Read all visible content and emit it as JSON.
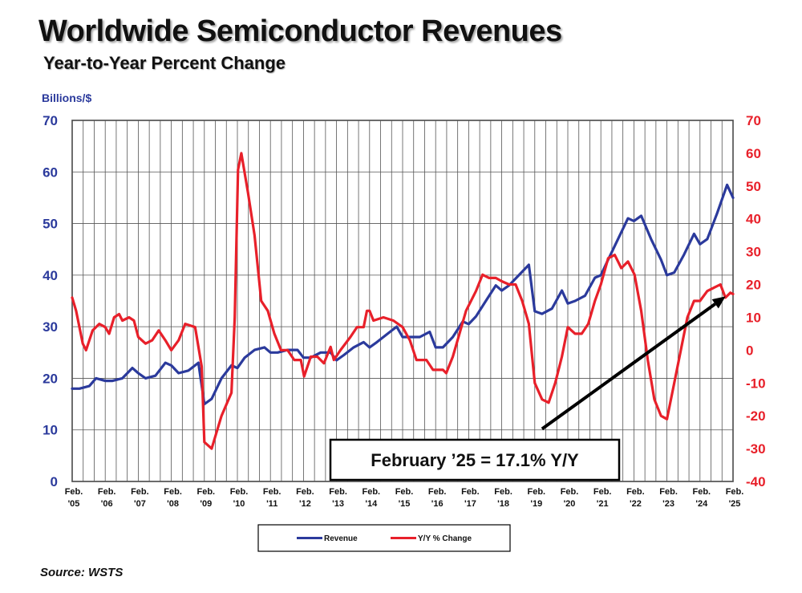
{
  "header": {
    "title": "Worldwide Semiconductor Revenues",
    "subtitle": "Year-to-Year Percent Change",
    "unit_label": "Billions/$"
  },
  "footer": {
    "source": "Source: WSTS"
  },
  "callout": {
    "text": "February ’25 = 17.1% Y/Y"
  },
  "colors": {
    "revenue": "#2b3a9c",
    "yoy": "#e8202a",
    "grid": "#555555",
    "arrow": "#000000"
  },
  "chart_data": {
    "type": "line",
    "title": "Worldwide Semiconductor Revenues",
    "subtitle": "Year-to-Year Percent Change",
    "ylabel": "Billions/$",
    "left_axis": {
      "range": [
        0,
        70
      ],
      "ticks": [
        0,
        10,
        20,
        30,
        40,
        50,
        60,
        70
      ]
    },
    "right_axis": {
      "range": [
        -40,
        70
      ],
      "ticks": [
        -40,
        -30,
        -20,
        -10,
        0,
        10,
        20,
        30,
        40,
        50,
        60,
        70
      ]
    },
    "x_range": [
      2005.08,
      2025.08
    ],
    "x_ticks": [
      {
        "pos": 2005.08,
        "l1": "Feb.",
        "l2": "'05"
      },
      {
        "pos": 2006.08,
        "l1": "Feb.",
        "l2": "'06"
      },
      {
        "pos": 2007.08,
        "l1": "Feb.",
        "l2": "'07"
      },
      {
        "pos": 2008.08,
        "l1": "Feb.",
        "l2": "'08"
      },
      {
        "pos": 2009.08,
        "l1": "Feb.",
        "l2": "'09"
      },
      {
        "pos": 2010.08,
        "l1": "Feb.",
        "l2": "'10"
      },
      {
        "pos": 2011.08,
        "l1": "Feb.",
        "l2": "'11"
      },
      {
        "pos": 2012.08,
        "l1": "Feb.",
        "l2": "'12"
      },
      {
        "pos": 2013.08,
        "l1": "Feb.",
        "l2": "'13"
      },
      {
        "pos": 2014.08,
        "l1": "Feb.",
        "l2": "'14"
      },
      {
        "pos": 2015.08,
        "l1": "Feb.",
        "l2": "'15"
      },
      {
        "pos": 2016.08,
        "l1": "Feb.",
        "l2": "'16"
      },
      {
        "pos": 2017.08,
        "l1": "Feb.",
        "l2": "'17"
      },
      {
        "pos": 2018.08,
        "l1": "Feb.",
        "l2": "'18"
      },
      {
        "pos": 2019.08,
        "l1": "Feb.",
        "l2": "'19"
      },
      {
        "pos": 2020.08,
        "l1": "Feb.",
        "l2": "'20"
      },
      {
        "pos": 2021.08,
        "l1": "Feb.",
        "l2": "'21"
      },
      {
        "pos": 2022.08,
        "l1": "Feb.",
        "l2": "'22"
      },
      {
        "pos": 2023.08,
        "l1": "Feb.",
        "l2": "'23"
      },
      {
        "pos": 2024.08,
        "l1": "Feb.",
        "l2": "'24"
      },
      {
        "pos": 2025.08,
        "l1": "Feb.",
        "l2": "'25"
      }
    ],
    "grid": true,
    "legend": {
      "placement": "bottom-center"
    },
    "series": [
      {
        "name": "Revenue",
        "axis": "left",
        "points": [
          [
            2005.08,
            18
          ],
          [
            2005.3,
            18
          ],
          [
            2005.6,
            18.5
          ],
          [
            2005.8,
            20
          ],
          [
            2006.08,
            19.5
          ],
          [
            2006.3,
            19.5
          ],
          [
            2006.6,
            20
          ],
          [
            2006.9,
            22
          ],
          [
            2007.08,
            21
          ],
          [
            2007.3,
            20
          ],
          [
            2007.6,
            20.5
          ],
          [
            2007.9,
            23
          ],
          [
            2008.08,
            22.5
          ],
          [
            2008.3,
            21
          ],
          [
            2008.6,
            21.5
          ],
          [
            2008.9,
            23
          ],
          [
            2009.08,
            15
          ],
          [
            2009.3,
            16
          ],
          [
            2009.6,
            20
          ],
          [
            2009.9,
            22.5
          ],
          [
            2010.08,
            22
          ],
          [
            2010.3,
            24
          ],
          [
            2010.6,
            25.5
          ],
          [
            2010.9,
            26
          ],
          [
            2011.08,
            25
          ],
          [
            2011.3,
            25
          ],
          [
            2011.6,
            25.5
          ],
          [
            2011.9,
            25.5
          ],
          [
            2012.08,
            24
          ],
          [
            2012.3,
            24
          ],
          [
            2012.6,
            25
          ],
          [
            2012.9,
            25
          ],
          [
            2013.08,
            23.5
          ],
          [
            2013.3,
            24.5
          ],
          [
            2013.6,
            26
          ],
          [
            2013.9,
            27
          ],
          [
            2014.08,
            26
          ],
          [
            2014.3,
            27
          ],
          [
            2014.6,
            28.5
          ],
          [
            2014.9,
            30
          ],
          [
            2015.08,
            28
          ],
          [
            2015.3,
            28
          ],
          [
            2015.6,
            28
          ],
          [
            2015.9,
            29
          ],
          [
            2016.08,
            26
          ],
          [
            2016.3,
            26
          ],
          [
            2016.6,
            28
          ],
          [
            2016.9,
            31
          ],
          [
            2017.08,
            30.5
          ],
          [
            2017.3,
            32
          ],
          [
            2017.6,
            35
          ],
          [
            2017.9,
            38
          ],
          [
            2018.08,
            37
          ],
          [
            2018.3,
            38
          ],
          [
            2018.6,
            40
          ],
          [
            2018.9,
            42
          ],
          [
            2019.08,
            33
          ],
          [
            2019.3,
            32.5
          ],
          [
            2019.6,
            33.5
          ],
          [
            2019.9,
            37
          ],
          [
            2020.08,
            34.5
          ],
          [
            2020.3,
            35
          ],
          [
            2020.6,
            36
          ],
          [
            2020.9,
            39.5
          ],
          [
            2021.08,
            40
          ],
          [
            2021.3,
            43
          ],
          [
            2021.6,
            47
          ],
          [
            2021.9,
            51
          ],
          [
            2022.08,
            50.5
          ],
          [
            2022.3,
            51.5
          ],
          [
            2022.6,
            47
          ],
          [
            2022.9,
            43
          ],
          [
            2023.08,
            40
          ],
          [
            2023.3,
            40.5
          ],
          [
            2023.6,
            44
          ],
          [
            2023.9,
            48
          ],
          [
            2024.08,
            46
          ],
          [
            2024.3,
            47
          ],
          [
            2024.6,
            52
          ],
          [
            2024.9,
            57.5
          ],
          [
            2025.08,
            55
          ]
        ]
      },
      {
        "name": "Y/Y % Change",
        "axis": "right",
        "points": [
          [
            2005.08,
            16
          ],
          [
            2005.2,
            12
          ],
          [
            2005.4,
            2
          ],
          [
            2005.5,
            0
          ],
          [
            2005.7,
            6
          ],
          [
            2005.9,
            8
          ],
          [
            2006.08,
            7
          ],
          [
            2006.2,
            5
          ],
          [
            2006.35,
            10
          ],
          [
            2006.5,
            11
          ],
          [
            2006.6,
            9
          ],
          [
            2006.8,
            10
          ],
          [
            2006.95,
            9
          ],
          [
            2007.08,
            4
          ],
          [
            2007.3,
            2
          ],
          [
            2007.5,
            3
          ],
          [
            2007.7,
            6
          ],
          [
            2007.9,
            3
          ],
          [
            2008.08,
            0
          ],
          [
            2008.3,
            3
          ],
          [
            2008.5,
            8
          ],
          [
            2008.8,
            7
          ],
          [
            2009.0,
            -5
          ],
          [
            2009.08,
            -28
          ],
          [
            2009.3,
            -30
          ],
          [
            2009.6,
            -20
          ],
          [
            2009.9,
            -13
          ],
          [
            2010.0,
            10
          ],
          [
            2010.1,
            55
          ],
          [
            2010.2,
            60
          ],
          [
            2010.4,
            48
          ],
          [
            2010.6,
            35
          ],
          [
            2010.8,
            15
          ],
          [
            2011.0,
            12
          ],
          [
            2011.2,
            5
          ],
          [
            2011.4,
            0
          ],
          [
            2011.6,
            0
          ],
          [
            2011.8,
            -3
          ],
          [
            2012.0,
            -3
          ],
          [
            2012.1,
            -8
          ],
          [
            2012.3,
            -2
          ],
          [
            2012.5,
            -2
          ],
          [
            2012.7,
            -4
          ],
          [
            2012.9,
            1
          ],
          [
            2013.0,
            -3
          ],
          [
            2013.2,
            0
          ],
          [
            2013.5,
            4
          ],
          [
            2013.7,
            7
          ],
          [
            2013.9,
            7
          ],
          [
            2014.0,
            12
          ],
          [
            2014.08,
            12
          ],
          [
            2014.2,
            9
          ],
          [
            2014.5,
            10
          ],
          [
            2014.8,
            9
          ],
          [
            2015.08,
            7
          ],
          [
            2015.3,
            3
          ],
          [
            2015.5,
            -3
          ],
          [
            2015.8,
            -3
          ],
          [
            2016.0,
            -6
          ],
          [
            2016.3,
            -6
          ],
          [
            2016.4,
            -7
          ],
          [
            2016.6,
            -2
          ],
          [
            2016.8,
            5
          ],
          [
            2017.0,
            12
          ],
          [
            2017.3,
            18
          ],
          [
            2017.5,
            23
          ],
          [
            2017.7,
            22
          ],
          [
            2017.9,
            22
          ],
          [
            2018.08,
            21
          ],
          [
            2018.3,
            20
          ],
          [
            2018.5,
            20
          ],
          [
            2018.7,
            15
          ],
          [
            2018.9,
            8
          ],
          [
            2019.08,
            -10
          ],
          [
            2019.3,
            -15
          ],
          [
            2019.5,
            -16
          ],
          [
            2019.7,
            -10
          ],
          [
            2019.9,
            -2
          ],
          [
            2020.08,
            7
          ],
          [
            2020.3,
            5
          ],
          [
            2020.5,
            5
          ],
          [
            2020.7,
            8
          ],
          [
            2020.9,
            15
          ],
          [
            2021.08,
            20
          ],
          [
            2021.3,
            28
          ],
          [
            2021.5,
            29
          ],
          [
            2021.7,
            25
          ],
          [
            2021.9,
            27
          ],
          [
            2022.1,
            23
          ],
          [
            2022.3,
            12
          ],
          [
            2022.5,
            -3
          ],
          [
            2022.7,
            -15
          ],
          [
            2022.9,
            -20
          ],
          [
            2023.08,
            -21
          ],
          [
            2023.3,
            -10
          ],
          [
            2023.5,
            0
          ],
          [
            2023.7,
            10
          ],
          [
            2023.9,
            15
          ],
          [
            2024.08,
            15
          ],
          [
            2024.3,
            18
          ],
          [
            2024.5,
            19
          ],
          [
            2024.7,
            20
          ],
          [
            2024.85,
            16
          ],
          [
            2025.0,
            17.5
          ],
          [
            2025.08,
            17.1
          ]
        ]
      }
    ],
    "annotation": {
      "text": "February ’25 = 17.1% Y/Y",
      "arrow_from": [
        2019.3,
        -24
      ],
      "arrow_to": [
        2025.0,
        17.1
      ]
    }
  }
}
